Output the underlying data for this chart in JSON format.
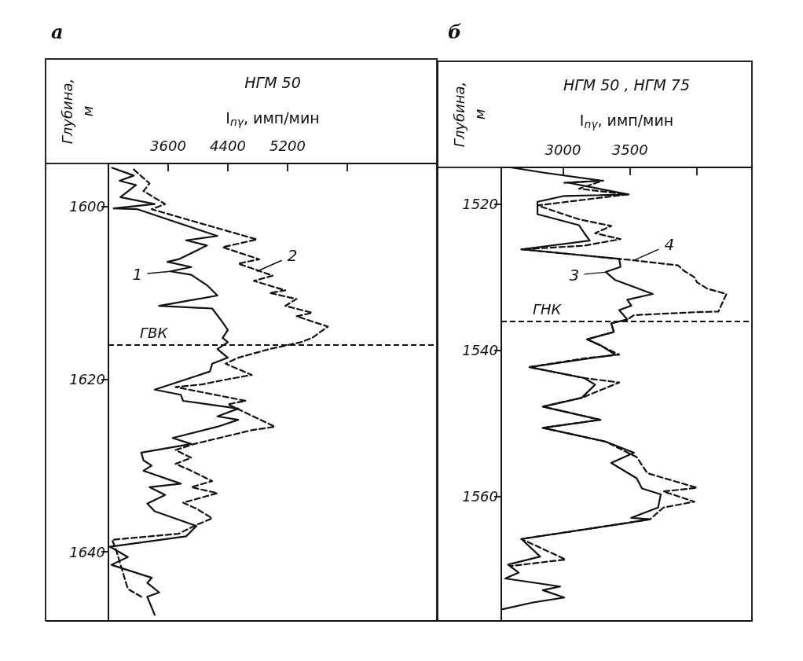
{
  "chart_data": [
    {
      "type": "line",
      "title": "а",
      "subtitle": "НГМ 50",
      "xlabel": "I$_{nγ}$, имп/мин",
      "ylabel": "Глубина, м",
      "marker": "none",
      "xlim": [
        2800,
        7200
      ],
      "xticks": [
        3600,
        4400,
        5200,
        {
          "value": 6000,
          "label": null
        }
      ],
      "ylim": [
        1648,
        1595
      ],
      "yticks": [
        1600,
        1620,
        1640
      ],
      "series": [
        {
          "color": "#111111",
          "line_style": "solid",
          "x": [
            2850,
            3140,
            2950,
            3170,
            2960,
            3420,
            2870,
            3190,
            4260,
            3840,
            4120,
            3740,
            3590,
            3910,
            3630,
            3910,
            4120,
            4260,
            3480,
            4190,
            4330,
            4400,
            4330,
            4400,
            4260,
            4400,
            4190,
            4160,
            3420,
            3770,
            3800,
            4540,
            4260,
            4540,
            4260,
            3660,
            3910,
            3240,
            3270,
            3380,
            3270,
            3770,
            3350,
            3560,
            3320,
            3420,
            3980,
            3840,
            2820,
            3060,
            2840,
            3380,
            3320,
            3480,
            3320,
            3420
          ],
          "values": [
            1595.5,
            1596.4,
            1597.0,
            1597.5,
            1598.9,
            1599.7,
            1600.2,
            1600.3,
            1603.4,
            1603.9,
            1604.5,
            1606.1,
            1606.4,
            1607.0,
            1607.5,
            1607.9,
            1609.1,
            1610.3,
            1611.5,
            1611.8,
            1613.4,
            1614.3,
            1615.2,
            1615.7,
            1616.5,
            1617.5,
            1618.2,
            1619.1,
            1621.2,
            1621.8,
            1622.5,
            1623.4,
            1624.3,
            1624.7,
            1625.5,
            1626.8,
            1627.5,
            1628.5,
            1629.4,
            1630.0,
            1630.6,
            1632.1,
            1632.5,
            1633.4,
            1634.4,
            1635.3,
            1637.0,
            1638.2,
            1639.4,
            1640.6,
            1641.5,
            1643.0,
            1643.6,
            1644.7,
            1645.2,
            1647.3
          ]
        },
        {
          "color": "#111111",
          "line_style": "dashed",
          "x": [
            3140,
            3350,
            3270,
            3560,
            3380,
            3980,
            4790,
            4330,
            4820,
            4540,
            5000,
            4750,
            5170,
            4960,
            5320,
            5170,
            5530,
            5320,
            5740,
            5530,
            5380,
            4960,
            4540,
            4370,
            4720,
            4400,
            4050,
            3700,
            4640,
            4400,
            5030,
            4720,
            3950,
            3700,
            3910,
            3700,
            3910,
            4190,
            3910,
            4260,
            3800,
            3980,
            4190,
            3950,
            3740,
            2850,
            2900,
            3060,
            3240
          ],
          "values": [
            1595.7,
            1597.3,
            1598.2,
            1599.7,
            1600.3,
            1601.8,
            1603.8,
            1604.7,
            1606.1,
            1606.6,
            1608.0,
            1608.6,
            1609.7,
            1610.0,
            1610.7,
            1611.5,
            1612.3,
            1612.7,
            1613.9,
            1615.2,
            1615.7,
            1616.5,
            1617.5,
            1618.2,
            1619.5,
            1620.0,
            1620.6,
            1620.9,
            1622.5,
            1622.9,
            1625.5,
            1625.9,
            1627.5,
            1628.2,
            1629.1,
            1629.8,
            1630.6,
            1631.8,
            1632.5,
            1633.2,
            1634.3,
            1635.0,
            1636.1,
            1637.0,
            1637.9,
            1638.6,
            1639.7,
            1644.3,
            1645.2
          ]
        }
      ],
      "ref_lines": [
        {
          "axis": "y",
          "value": 1616,
          "label": "ГВК",
          "line_style": "dashed"
        }
      ],
      "annotations": [
        {
          "text": "1",
          "x": 3630,
          "y": 1607.5
        },
        {
          "text": "2",
          "x": 4790,
          "y": 1607.5
        }
      ]
    },
    {
      "type": "line",
      "title": "б",
      "subtitle": "НГМ 50 , НГМ 75",
      "xlabel": "I$_{nγ}$, имп/мин",
      "ylabel": "Глубина, м",
      "marker": "none",
      "xlim": [
        2540,
        4410
      ],
      "xticks": [
        3000,
        3500,
        {
          "value": 4000,
          "label": null
        }
      ],
      "ylim": [
        1577,
        1515
      ],
      "yticks": [
        1520,
        1540,
        1560
      ],
      "series": [
        {
          "color": "#111111",
          "line_style": "solid",
          "x": [
            2610,
            2850,
            3280,
            3040,
            3490,
            3010,
            2810,
            2810,
            3120,
            3160,
            3200,
            2690,
            3420,
            3430,
            3320,
            3390,
            3670,
            3480,
            3510,
            3420,
            3480,
            3360,
            3380,
            3180,
            3280,
            3390,
            2750,
            3160,
            3240,
            3140,
            2850,
            3280,
            2850,
            3320,
            3530,
            3360,
            3550,
            3590,
            3730,
            3710,
            3510,
            3650,
            3480,
            2690,
            2830,
            2590,
            2670,
            2570,
            2980,
            2850,
            3010,
            2770,
            2550
          ],
          "values": [
            1515.0,
            1515.7,
            1516.8,
            1517.1,
            1518.7,
            1518.9,
            1519.7,
            1521.4,
            1522.9,
            1524.0,
            1525.0,
            1526.2,
            1527.5,
            1528.6,
            1529.3,
            1530.4,
            1532.3,
            1533.1,
            1533.9,
            1534.5,
            1535.8,
            1536.3,
            1537.5,
            1538.5,
            1539.3,
            1540.6,
            1542.3,
            1543.8,
            1544.7,
            1546.5,
            1547.7,
            1549.5,
            1550.6,
            1552.5,
            1554.0,
            1555.4,
            1557.5,
            1558.9,
            1559.7,
            1561.5,
            1562.9,
            1563.1,
            1563.6,
            1565.8,
            1568.2,
            1569.3,
            1570.4,
            1571.2,
            1572.3,
            1572.8,
            1573.8,
            1574.5,
            1575.4
          ]
        },
        {
          "color": "#111111",
          "line_style": "dashed",
          "x": [
            3010,
            3300,
            3120,
            3480,
            2810,
            3120,
            3360,
            3240,
            3430,
            3160,
            2690,
            3530,
            3860,
            3900,
            3980,
            4000,
            4080,
            4220,
            4160,
            3980,
            3530,
            3480,
            3360,
            3380,
            3180,
            3420,
            3160,
            2750,
            3160,
            3420,
            3140,
            2850,
            3280,
            2850,
            3320,
            3550,
            3630,
            4000,
            3750,
            3980,
            3750,
            3650,
            3480,
            2690,
            3020,
            2610
          ],
          "values": [
            1517.1,
            1516.8,
            1517.9,
            1518.7,
            1520.2,
            1522.1,
            1523.0,
            1524.0,
            1524.8,
            1525.7,
            1526.2,
            1527.7,
            1528.4,
            1529.1,
            1530.0,
            1530.7,
            1531.6,
            1532.3,
            1534.7,
            1534.8,
            1535.2,
            1535.8,
            1536.3,
            1537.5,
            1538.5,
            1540.6,
            1541.1,
            1542.3,
            1543.8,
            1544.4,
            1546.5,
            1547.7,
            1549.5,
            1550.6,
            1552.5,
            1554.6,
            1556.8,
            1558.8,
            1559.3,
            1560.7,
            1561.5,
            1563.1,
            1563.6,
            1565.8,
            1568.6,
            1569.5
          ]
        }
      ],
      "ref_lines": [
        {
          "axis": "y",
          "value": 1536,
          "label": "ГНК",
          "line_style": "dashed"
        }
      ],
      "annotations": [
        {
          "text": "3",
          "x": 3330,
          "y": 1529.3
        },
        {
          "text": "4",
          "x": 3530,
          "y": 1527.7
        }
      ]
    }
  ]
}
